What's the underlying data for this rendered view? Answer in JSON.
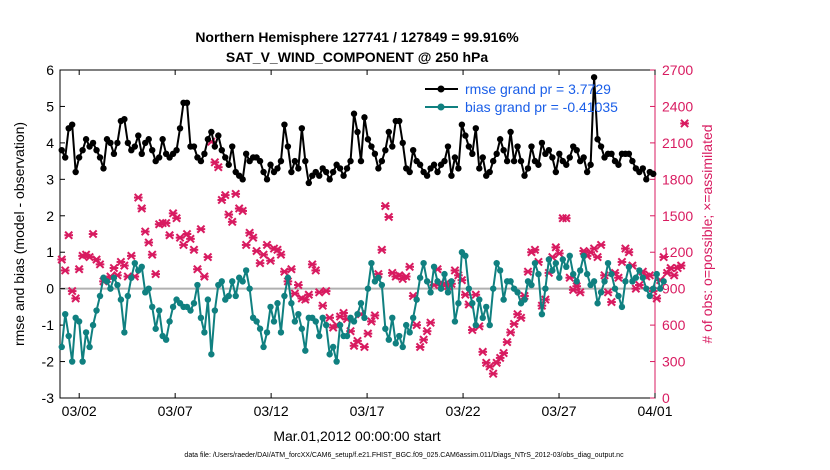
{
  "chart_data": {
    "type": "line",
    "title_line1": "Northern Hemisphere 127741 / 127849 = 99.916%",
    "title_line2": "SAT_V_WIND_COMPONENT @ 250 hPa",
    "xlabel": "Mar.01,2012 00:00:00 start",
    "ylabel_left": "rmse and bias (model - observation)",
    "ylabel_right": "# of obs: o=possible; ×=assimilated",
    "footnote": "data file: /Users/raeder/DAI/ATM_forcXX/CAM6_setup/f.e21.FHIST_BGC.f09_025.CAM6assim.011/Diags_NTrS_2012-03/obs_diag_output.nc",
    "x_tick_labels": [
      "03/02",
      "03/07",
      "03/12",
      "03/17",
      "03/22",
      "03/27",
      "04/01"
    ],
    "x_tick_values": [
      1,
      6,
      11,
      16,
      21,
      26,
      31
    ],
    "xlim": [
      0,
      31
    ],
    "ylim_left": [
      -3,
      6
    ],
    "yticks_left": [
      -3,
      -2,
      -1,
      0,
      1,
      2,
      3,
      4,
      5,
      6
    ],
    "ylim_right": [
      0,
      2700
    ],
    "yticks_right": [
      0,
      300,
      600,
      900,
      1200,
      1500,
      1800,
      2100,
      2400,
      2700
    ],
    "colors": {
      "rmse": "#000000",
      "bias": "#108080",
      "obs": "#d81b60",
      "zero_line": "#b0b0b0",
      "legend_text": "#1a5ee8"
    },
    "series": [
      {
        "name": "rmse grand pr = 3.7729",
        "key": "rmse",
        "values": [
          3.8,
          3.6,
          4.4,
          4.5,
          3.2,
          3.6,
          3.8,
          4.1,
          3.9,
          4.0,
          3.8,
          3.6,
          3.3,
          4.1,
          4.0,
          3.7,
          4.0,
          4.6,
          4.65,
          4.0,
          3.8,
          3.9,
          4.2,
          3.7,
          4.0,
          4.1,
          3.8,
          3.5,
          3.6,
          4.1,
          3.7,
          3.6,
          3.7,
          3.8,
          4.4,
          5.1,
          5.1,
          3.9,
          3.9,
          3.6,
          3.5,
          3.7,
          4.1,
          4.3,
          3.9,
          4.2,
          3.8,
          3.6,
          3.4,
          3.9,
          3.2,
          3.1,
          3.0,
          3.7,
          3.5,
          3.6,
          3.6,
          3.5,
          3.2,
          3.0,
          3.4,
          3.2,
          3.3,
          3.5,
          4.5,
          3.9,
          3.2,
          3.5,
          3.3,
          4.4,
          3.5,
          2.9,
          3.1,
          3.2,
          3.1,
          3.3,
          3.2,
          3.0,
          3.2,
          3.4,
          3.3,
          3.1,
          3.3,
          3.5,
          4.8,
          4.3,
          3.5,
          4.7,
          4.1,
          3.9,
          3.7,
          3.3,
          3.5,
          3.8,
          4.3,
          3.9,
          4.6,
          4.6,
          4.0,
          3.3,
          3.2,
          3.8,
          3.5,
          3.4,
          3.2,
          3.1,
          3.3,
          3.4,
          3.2,
          3.4,
          3.5,
          3.9,
          3.1,
          3.6,
          3.3,
          4.5,
          4.2,
          3.9,
          3.7,
          4.4,
          3.3,
          3.6,
          3.1,
          3.2,
          3.5,
          3.7,
          4.1,
          3.8,
          3.5,
          4.3,
          3.5,
          3.9,
          3.5,
          3.1,
          3.3,
          3.9,
          3.5,
          3.4,
          4.0,
          3.7,
          3.8,
          3.6,
          3.2,
          3.7,
          3.5,
          3.4,
          3.6,
          3.9,
          3.8,
          3.5,
          3.6,
          3.2,
          3.4,
          5.8,
          4.1,
          3.9,
          3.6,
          3.7,
          3.7,
          3.5,
          3.4,
          3.7,
          3.7,
          3.7,
          3.5,
          3.3,
          3.2,
          3.3,
          3.0,
          3.2,
          3.15
        ]
      },
      {
        "name": "bias grand pr = -0.41035",
        "key": "bias",
        "values": [
          -1.6,
          -0.7,
          -1.3,
          -2.0,
          -0.8,
          -0.9,
          -2.0,
          -1.2,
          -1.6,
          -1.0,
          -0.6,
          -0.2,
          0.3,
          0.2,
          0.0,
          0.3,
          0.1,
          -0.3,
          -1.2,
          -0.2,
          0.3,
          0.7,
          0.5,
          0.6,
          -0.1,
          0.0,
          -0.5,
          -1.1,
          -0.6,
          -1.3,
          -1.4,
          -0.9,
          -0.5,
          -0.3,
          -0.4,
          -0.5,
          -0.5,
          -0.6,
          -0.4,
          0.1,
          -0.8,
          -1.2,
          -0.3,
          -1.8,
          -0.6,
          0.1,
          0.2,
          -0.3,
          -0.2,
          0.2,
          -0.2,
          0.3,
          0.2,
          0.5,
          0.0,
          -0.8,
          -0.9,
          -1.1,
          -1.6,
          -1.2,
          -0.5,
          -0.9,
          -0.4,
          -1.2,
          -0.2,
          0.3,
          -0.4,
          -0.9,
          -0.7,
          -1.1,
          -1.7,
          -0.8,
          -0.8,
          -0.9,
          -1.3,
          -0.8,
          -1.0,
          -1.8,
          -1.6,
          -2.0,
          -1.0,
          -1.3,
          -1.3,
          -0.8,
          -0.9,
          -0.7,
          -0.4,
          -0.8,
          0.0,
          0.7,
          0.2,
          0.3,
          0.1,
          -1.1,
          -1.4,
          -0.8,
          -1.5,
          -1.3,
          -1.6,
          -1.0,
          -1.2,
          -0.8,
          -0.3,
          0.3,
          0.7,
          0.2,
          -0.1,
          0.6,
          0.2,
          0.0,
          0.4,
          -0.1,
          0.2,
          -0.9,
          -0.4,
          1.0,
          0.9,
          0.0,
          -0.4,
          -1.0,
          -0.3,
          -0.8,
          -0.5,
          -1.0,
          0.0,
          0.7,
          0.5,
          -0.3,
          0.2,
          0.2,
          0.0,
          -0.1,
          -0.4,
          -0.3,
          0.2,
          0.1,
          0.7,
          0.4,
          -0.7,
          0.0,
          0.8,
          0.5,
          0.7,
          0.3,
          0.8,
          0.6,
          0.9,
          0.4,
          0.2,
          0.5,
          0.9,
          0.4,
          0.1,
          0.2,
          -0.4,
          -0.1,
          0.2,
          0.7,
          0.4,
          0.0,
          -0.2,
          -0.5,
          0.2,
          0.6,
          0.2,
          0.3,
          0.5,
          0.3,
          0.0,
          -0.2,
          0.0,
          0.4,
          0.0,
          0.2
        ]
      },
      {
        "name": "obs assimilated",
        "key": "obs",
        "marker_only": true,
        "values": [
          1140,
          1050,
          1340,
          880,
          820,
          1060,
          1170,
          1180,
          1160,
          1350,
          1140,
          1100,
          960,
          980,
          1000,
          1070,
          1010,
          1120,
          1090,
          1000,
          1170,
          1000,
          1650,
          1560,
          1370,
          1280,
          1180,
          1020,
          1430,
          1440,
          1440,
          1340,
          1520,
          1480,
          1320,
          1260,
          1350,
          1310,
          1220,
          1060,
          1390,
          1000,
          1160,
          2110,
          1940,
          1900,
          1630,
          1670,
          1510,
          1450,
          1680,
          1560,
          1540,
          1260,
          1360,
          1320,
          1210,
          1110,
          1180,
          1260,
          1130,
          1230,
          1220,
          1180,
          1040,
          960,
          1060,
          860,
          930,
          820,
          810,
          850,
          1100,
          1050,
          870,
          760,
          880,
          660,
          580,
          600,
          670,
          700,
          650,
          550,
          430,
          470,
          690,
          420,
          530,
          630,
          680,
          1020,
          1220,
          1580,
          1490,
          1030,
          1000,
          1010,
          980,
          1000,
          1080,
          840,
          600,
          420,
          480,
          550,
          620,
          930,
          1060,
          950,
          930,
          920,
          940,
          1050,
          1010,
          970,
          850,
          770,
          560,
          850,
          590,
          380,
          290,
          260,
          200,
          290,
          330,
          370,
          460,
          540,
          610,
          690,
          660,
          840,
          1040,
          1200,
          1220,
          1120,
          760,
          810,
          1030,
          1160,
          1240,
          1190,
          1480,
          1480,
          990,
          890,
          920,
          870,
          1210,
          1170,
          1200,
          1230,
          1160,
          1260,
          1010,
          870,
          790,
          1030,
          990,
          1120,
          1230,
          1200,
          1090,
          900,
          930,
          1040,
          1000,
          1010,
          880,
          820,
          970,
          1160,
          1030,
          1070,
          1010,
          1070,
          1090,
          2260
        ]
      }
    ],
    "legend": {
      "placement": "top-right"
    }
  }
}
